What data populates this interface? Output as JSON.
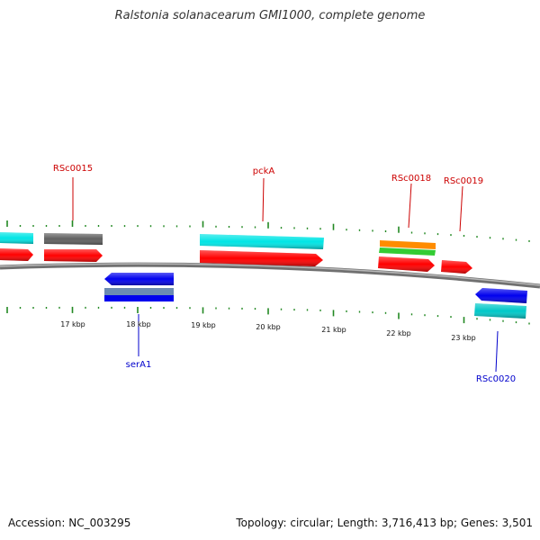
{
  "title": "Ralstonia solanacearum GMI1000, complete genome",
  "footer": {
    "accession": "Accession: NC_003295",
    "summary": "Topology: circular; Length: 3,716,413 bp; Genes: 3,501"
  },
  "scale_labels": [
    "17 kbp",
    "18 kbp",
    "19 kbp",
    "20 kbp",
    "21 kbp",
    "22 kbp",
    "23 kbp"
  ],
  "gene_labels": {
    "top": [
      "RSc0015",
      "pckA",
      "RSc0018",
      "RSc0019"
    ],
    "bottom": [
      "serA1",
      "RSc0020"
    ]
  },
  "colors": {
    "forward_cds": "#ff0000",
    "reverse_cds": "#0000ee",
    "forward_label": "#cc0000",
    "reverse_label": "#0000cc",
    "cog_cyan": "#00e5e5",
    "cog_gray": "#606060",
    "cog_orange": "#ff8c00",
    "cog_green": "#33cc33",
    "cog_teal": "#00b3b3",
    "cog_steel": "#6b8bb3",
    "tick": "#228822",
    "backbone": "#808080"
  }
}
